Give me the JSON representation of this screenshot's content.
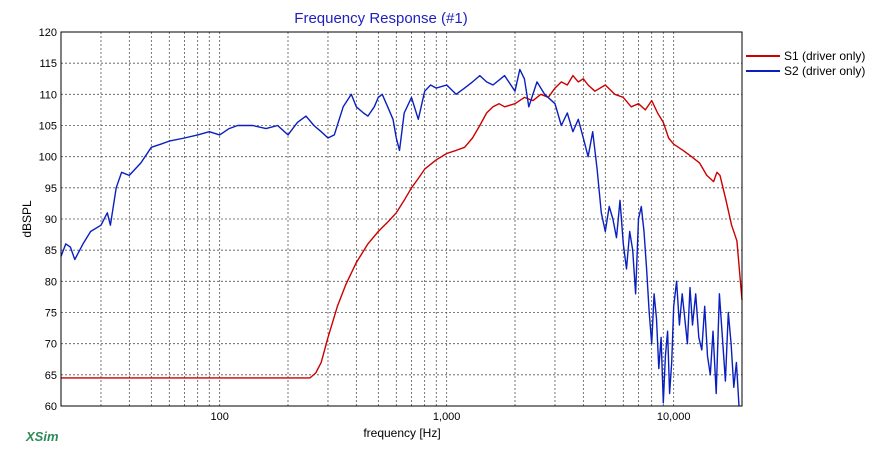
{
  "app": {
    "brand": "XSim"
  },
  "chart_data": {
    "type": "line",
    "title": "Frequency Response (#1)",
    "xlabel": "frequency [Hz]",
    "ylabel": "dBSPL",
    "xscale": "log",
    "xlim": [
      20,
      20000
    ],
    "ylim": [
      60,
      120
    ],
    "x_ticks": [
      {
        "value": 100,
        "label": "100"
      },
      {
        "value": 1000,
        "label": "1,000"
      },
      {
        "value": 10000,
        "label": "10,000"
      }
    ],
    "y_ticks": [
      60,
      65,
      70,
      75,
      80,
      85,
      90,
      95,
      100,
      105,
      110,
      115,
      120
    ],
    "grid": true,
    "legend_position": "right",
    "series": [
      {
        "name": "S1 (driver only)",
        "color": "#cc0000",
        "points": [
          [
            20,
            64.5
          ],
          [
            100,
            64.5
          ],
          [
            200,
            64.5
          ],
          [
            250,
            64.5
          ],
          [
            265,
            65.3
          ],
          [
            280,
            67
          ],
          [
            300,
            71
          ],
          [
            330,
            76
          ],
          [
            360,
            79.5
          ],
          [
            400,
            83
          ],
          [
            450,
            86
          ],
          [
            500,
            88
          ],
          [
            550,
            89.5
          ],
          [
            600,
            91
          ],
          [
            650,
            93
          ],
          [
            700,
            95
          ],
          [
            750,
            96.5
          ],
          [
            800,
            98
          ],
          [
            900,
            99.5
          ],
          [
            1000,
            100.5
          ],
          [
            1100,
            101
          ],
          [
            1200,
            101.5
          ],
          [
            1300,
            103
          ],
          [
            1400,
            105
          ],
          [
            1500,
            107
          ],
          [
            1600,
            108
          ],
          [
            1700,
            108.5
          ],
          [
            1800,
            108
          ],
          [
            2000,
            108.5
          ],
          [
            2200,
            109.5
          ],
          [
            2400,
            109
          ],
          [
            2600,
            110
          ],
          [
            2800,
            109.5
          ],
          [
            3000,
            111
          ],
          [
            3200,
            112
          ],
          [
            3400,
            111.5
          ],
          [
            3600,
            113
          ],
          [
            3800,
            112
          ],
          [
            4000,
            112.5
          ],
          [
            4200,
            111.5
          ],
          [
            4500,
            110.5
          ],
          [
            5000,
            111.5
          ],
          [
            5500,
            110
          ],
          [
            6000,
            109.5
          ],
          [
            6500,
            108
          ],
          [
            7000,
            108.5
          ],
          [
            7500,
            107.5
          ],
          [
            8000,
            109
          ],
          [
            8500,
            107
          ],
          [
            9000,
            105.5
          ],
          [
            9500,
            103
          ],
          [
            10000,
            102
          ],
          [
            11000,
            101
          ],
          [
            12000,
            100
          ],
          [
            13000,
            99
          ],
          [
            14000,
            97
          ],
          [
            15000,
            96
          ],
          [
            15500,
            97.5
          ],
          [
            16000,
            97
          ],
          [
            17000,
            93
          ],
          [
            18000,
            89
          ],
          [
            19000,
            86.5
          ],
          [
            20000,
            77
          ]
        ]
      },
      {
        "name": "S2 (driver only)",
        "color": "#0a1fbf",
        "points": [
          [
            20,
            84
          ],
          [
            21,
            86
          ],
          [
            22,
            85.5
          ],
          [
            23,
            83.5
          ],
          [
            25,
            86
          ],
          [
            27,
            88
          ],
          [
            30,
            89
          ],
          [
            32,
            91
          ],
          [
            33,
            89
          ],
          [
            34,
            92
          ],
          [
            35,
            95
          ],
          [
            37,
            97.5
          ],
          [
            40,
            97
          ],
          [
            45,
            99
          ],
          [
            50,
            101.5
          ],
          [
            55,
            102
          ],
          [
            60,
            102.5
          ],
          [
            70,
            103
          ],
          [
            80,
            103.5
          ],
          [
            90,
            104
          ],
          [
            100,
            103.5
          ],
          [
            110,
            104.5
          ],
          [
            120,
            105
          ],
          [
            140,
            105
          ],
          [
            160,
            104.5
          ],
          [
            180,
            105
          ],
          [
            200,
            103.5
          ],
          [
            220,
            105.5
          ],
          [
            240,
            106.5
          ],
          [
            260,
            105
          ],
          [
            280,
            104
          ],
          [
            300,
            103
          ],
          [
            320,
            103.5
          ],
          [
            350,
            108
          ],
          [
            380,
            110
          ],
          [
            400,
            108
          ],
          [
            430,
            107
          ],
          [
            450,
            106.5
          ],
          [
            480,
            108
          ],
          [
            500,
            109.5
          ],
          [
            520,
            110
          ],
          [
            550,
            108
          ],
          [
            580,
            106
          ],
          [
            600,
            103
          ],
          [
            620,
            101
          ],
          [
            650,
            107
          ],
          [
            700,
            109.5
          ],
          [
            750,
            106
          ],
          [
            800,
            110.5
          ],
          [
            850,
            111.5
          ],
          [
            900,
            111
          ],
          [
            1000,
            111.5
          ],
          [
            1100,
            110
          ],
          [
            1200,
            111
          ],
          [
            1300,
            112
          ],
          [
            1400,
            113
          ],
          [
            1500,
            112
          ],
          [
            1600,
            111.5
          ],
          [
            1800,
            113
          ],
          [
            2000,
            110.5
          ],
          [
            2100,
            114
          ],
          [
            2200,
            112.5
          ],
          [
            2300,
            108
          ],
          [
            2500,
            112
          ],
          [
            2700,
            110
          ],
          [
            3000,
            108.5
          ],
          [
            3200,
            105
          ],
          [
            3400,
            107
          ],
          [
            3600,
            104
          ],
          [
            3800,
            106
          ],
          [
            4000,
            103
          ],
          [
            4200,
            100
          ],
          [
            4400,
            104
          ],
          [
            4600,
            98
          ],
          [
            4800,
            91
          ],
          [
            5000,
            88
          ],
          [
            5200,
            92
          ],
          [
            5400,
            90
          ],
          [
            5600,
            87
          ],
          [
            5800,
            93
          ],
          [
            6000,
            86
          ],
          [
            6200,
            82
          ],
          [
            6400,
            88
          ],
          [
            6600,
            85
          ],
          [
            6800,
            78
          ],
          [
            7000,
            90
          ],
          [
            7200,
            92
          ],
          [
            7400,
            88
          ],
          [
            7600,
            82
          ],
          [
            7800,
            75
          ],
          [
            8000,
            70
          ],
          [
            8200,
            78
          ],
          [
            8400,
            74
          ],
          [
            8600,
            66
          ],
          [
            8800,
            71
          ],
          [
            9000,
            60.5
          ],
          [
            9200,
            68
          ],
          [
            9400,
            72
          ],
          [
            9600,
            62
          ],
          [
            9800,
            67
          ],
          [
            10000,
            76
          ],
          [
            10300,
            80
          ],
          [
            10600,
            73
          ],
          [
            10900,
            78
          ],
          [
            11200,
            74
          ],
          [
            11500,
            70
          ],
          [
            11800,
            79
          ],
          [
            12100,
            73
          ],
          [
            12500,
            78
          ],
          [
            12900,
            71
          ],
          [
            13300,
            69
          ],
          [
            13700,
            76
          ],
          [
            14100,
            68
          ],
          [
            14500,
            65
          ],
          [
            14900,
            72
          ],
          [
            15400,
            62
          ],
          [
            15900,
            78
          ],
          [
            16400,
            71
          ],
          [
            16900,
            64
          ],
          [
            17400,
            75
          ],
          [
            17900,
            70
          ],
          [
            18400,
            63
          ],
          [
            18900,
            67
          ],
          [
            19400,
            60
          ]
        ]
      }
    ]
  }
}
